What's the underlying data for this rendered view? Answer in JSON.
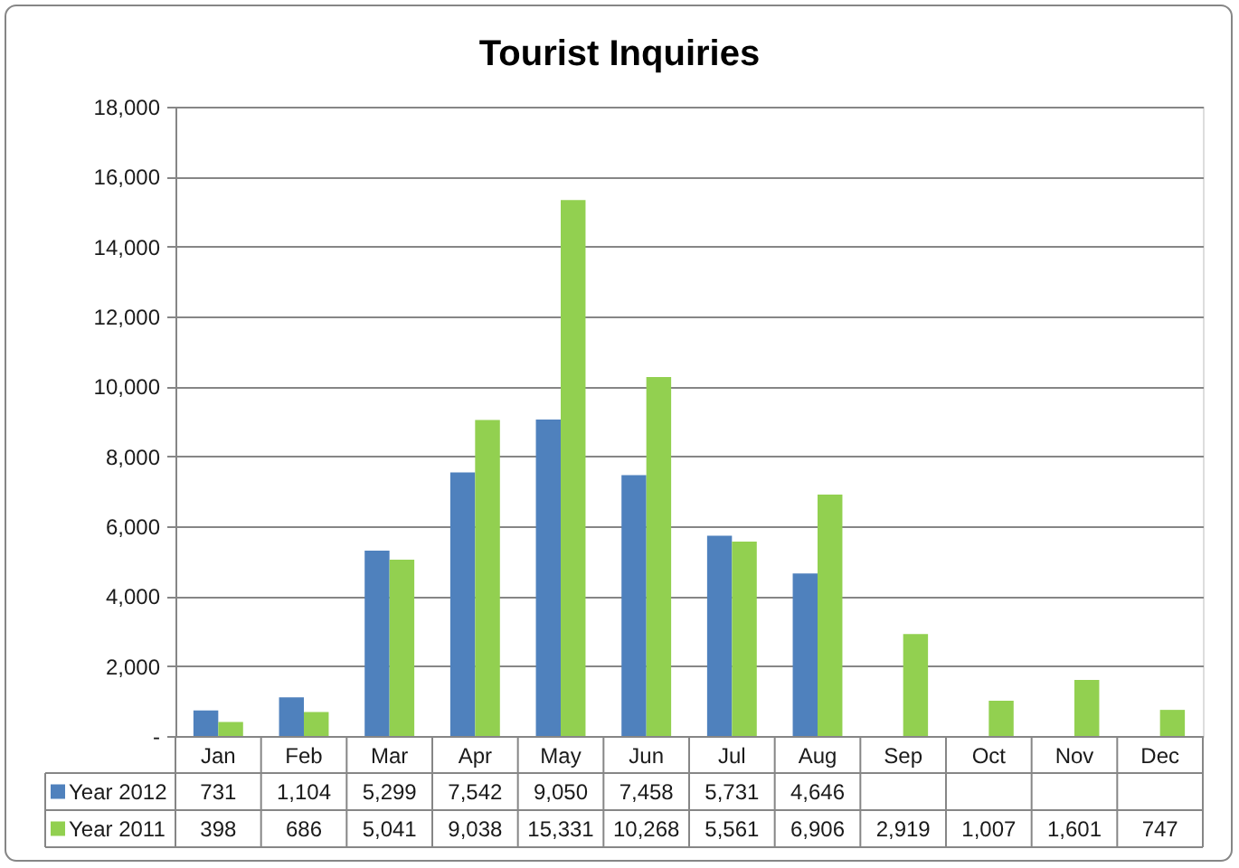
{
  "chart_data": {
    "type": "bar",
    "title": "Tourist Inquiries",
    "categories": [
      "Jan",
      "Feb",
      "Mar",
      "Apr",
      "May",
      "Jun",
      "Jul",
      "Aug",
      "Sep",
      "Oct",
      "Nov",
      "Dec"
    ],
    "series": [
      {
        "name": "Year 2012",
        "color": "#4f81bd",
        "values": [
          731,
          1104,
          5299,
          7542,
          9050,
          7458,
          5731,
          4646,
          null,
          null,
          null,
          null
        ],
        "value_labels": [
          "731",
          "1,104",
          "5,299",
          "7,542",
          "9,050",
          "7,458",
          "5,731",
          "4,646",
          null,
          null,
          null,
          null
        ]
      },
      {
        "name": "Year 2011",
        "color": "#92d050",
        "values": [
          398,
          686,
          5041,
          9038,
          15331,
          10268,
          5561,
          6906,
          2919,
          1007,
          1601,
          747
        ],
        "value_labels": [
          "398",
          "686",
          "5,041",
          "9,038",
          "15,331",
          "10,268",
          "5,561",
          "6,906",
          "2,919",
          "1,007",
          "1,601",
          "747"
        ]
      }
    ],
    "ylim": [
      0,
      18000
    ],
    "yticks": [
      {
        "value": 0,
        "label": "-"
      },
      {
        "value": 2000,
        "label": "2,000"
      },
      {
        "value": 4000,
        "label": "4,000"
      },
      {
        "value": 6000,
        "label": "6,000"
      },
      {
        "value": 8000,
        "label": "8,000"
      },
      {
        "value": 10000,
        "label": "10,000"
      },
      {
        "value": 12000,
        "label": "12,000"
      },
      {
        "value": 14000,
        "label": "14,000"
      },
      {
        "value": 16000,
        "label": "16,000"
      },
      {
        "value": 18000,
        "label": "18,000"
      }
    ],
    "grid": "y",
    "legend": "bottom"
  }
}
